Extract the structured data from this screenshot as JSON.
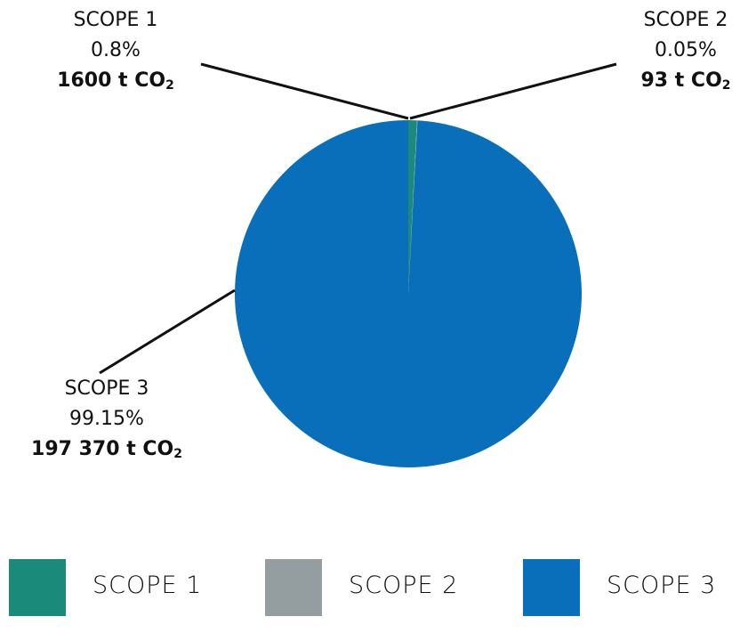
{
  "chart_data": {
    "type": "pie",
    "categories": [
      "SCOPE 1",
      "SCOPE 2",
      "SCOPE 3"
    ],
    "values": [
      0.8,
      0.05,
      99.15
    ],
    "percent_labels": [
      "0.8%",
      "0.05%",
      "99.15%"
    ],
    "amounts": [
      "1600 t CO",
      "93 t CO",
      "197 370 t CO"
    ],
    "amount_subscript": "2",
    "colors": [
      "#1a8a7a",
      "#949ea0",
      "#0a6fba"
    ],
    "legend": {
      "placement": "bottom",
      "entries": [
        "SCOPE 1",
        "SCOPE 2",
        "SCOPE 3"
      ]
    }
  }
}
